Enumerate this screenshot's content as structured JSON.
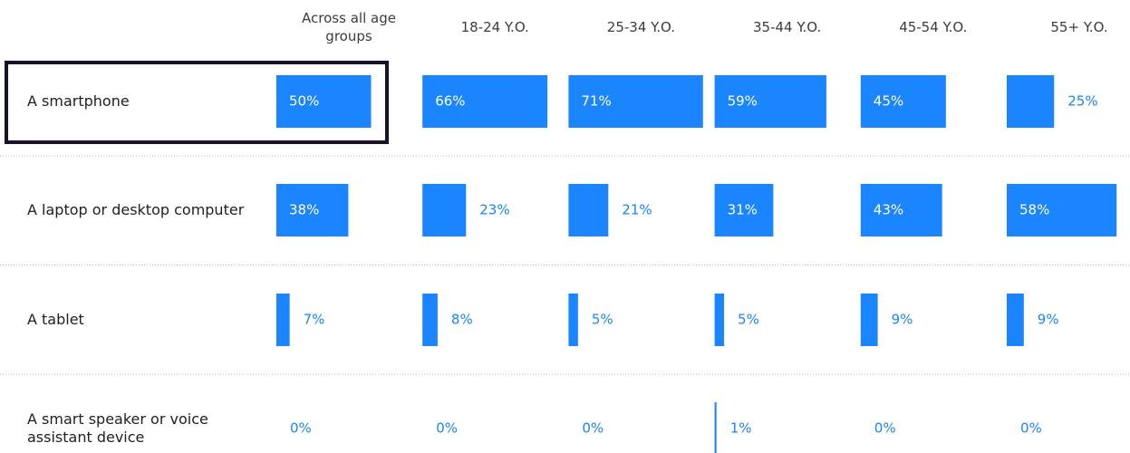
{
  "chart_data": {
    "type": "bar",
    "categories": [
      "A smartphone",
      "A laptop or desktop computer",
      "A tablet",
      "A smart speaker or voice assistant device"
    ],
    "color": "#1a85ff",
    "series": [
      {
        "name": "Across all age groups",
        "values": [
          50,
          38,
          7,
          0
        ],
        "value_labels": [
          "50%",
          "38%",
          "7%",
          "0%"
        ]
      },
      {
        "name": "18-24 Y.O.",
        "values": [
          66,
          23,
          8,
          0
        ],
        "value_labels": [
          "66%",
          "23%",
          "8%",
          "0%"
        ]
      },
      {
        "name": "25-34 Y.O.",
        "values": [
          71,
          21,
          5,
          0
        ],
        "value_labels": [
          "71%",
          "21%",
          "5%",
          "0%"
        ]
      },
      {
        "name": "35-44 Y.O.",
        "values": [
          59,
          31,
          5,
          1
        ],
        "value_labels": [
          "59%",
          "31%",
          "5%",
          "1%"
        ]
      },
      {
        "name": "45-54 Y.O.",
        "values": [
          45,
          43,
          9,
          0
        ],
        "value_labels": [
          "45%",
          "43%",
          "9%",
          "0%"
        ]
      },
      {
        "name": "55+ Y.O.",
        "values": [
          25,
          58,
          9,
          0
        ],
        "value_labels": [
          "25%",
          "58%",
          "9%",
          "0%"
        ]
      }
    ]
  }
}
